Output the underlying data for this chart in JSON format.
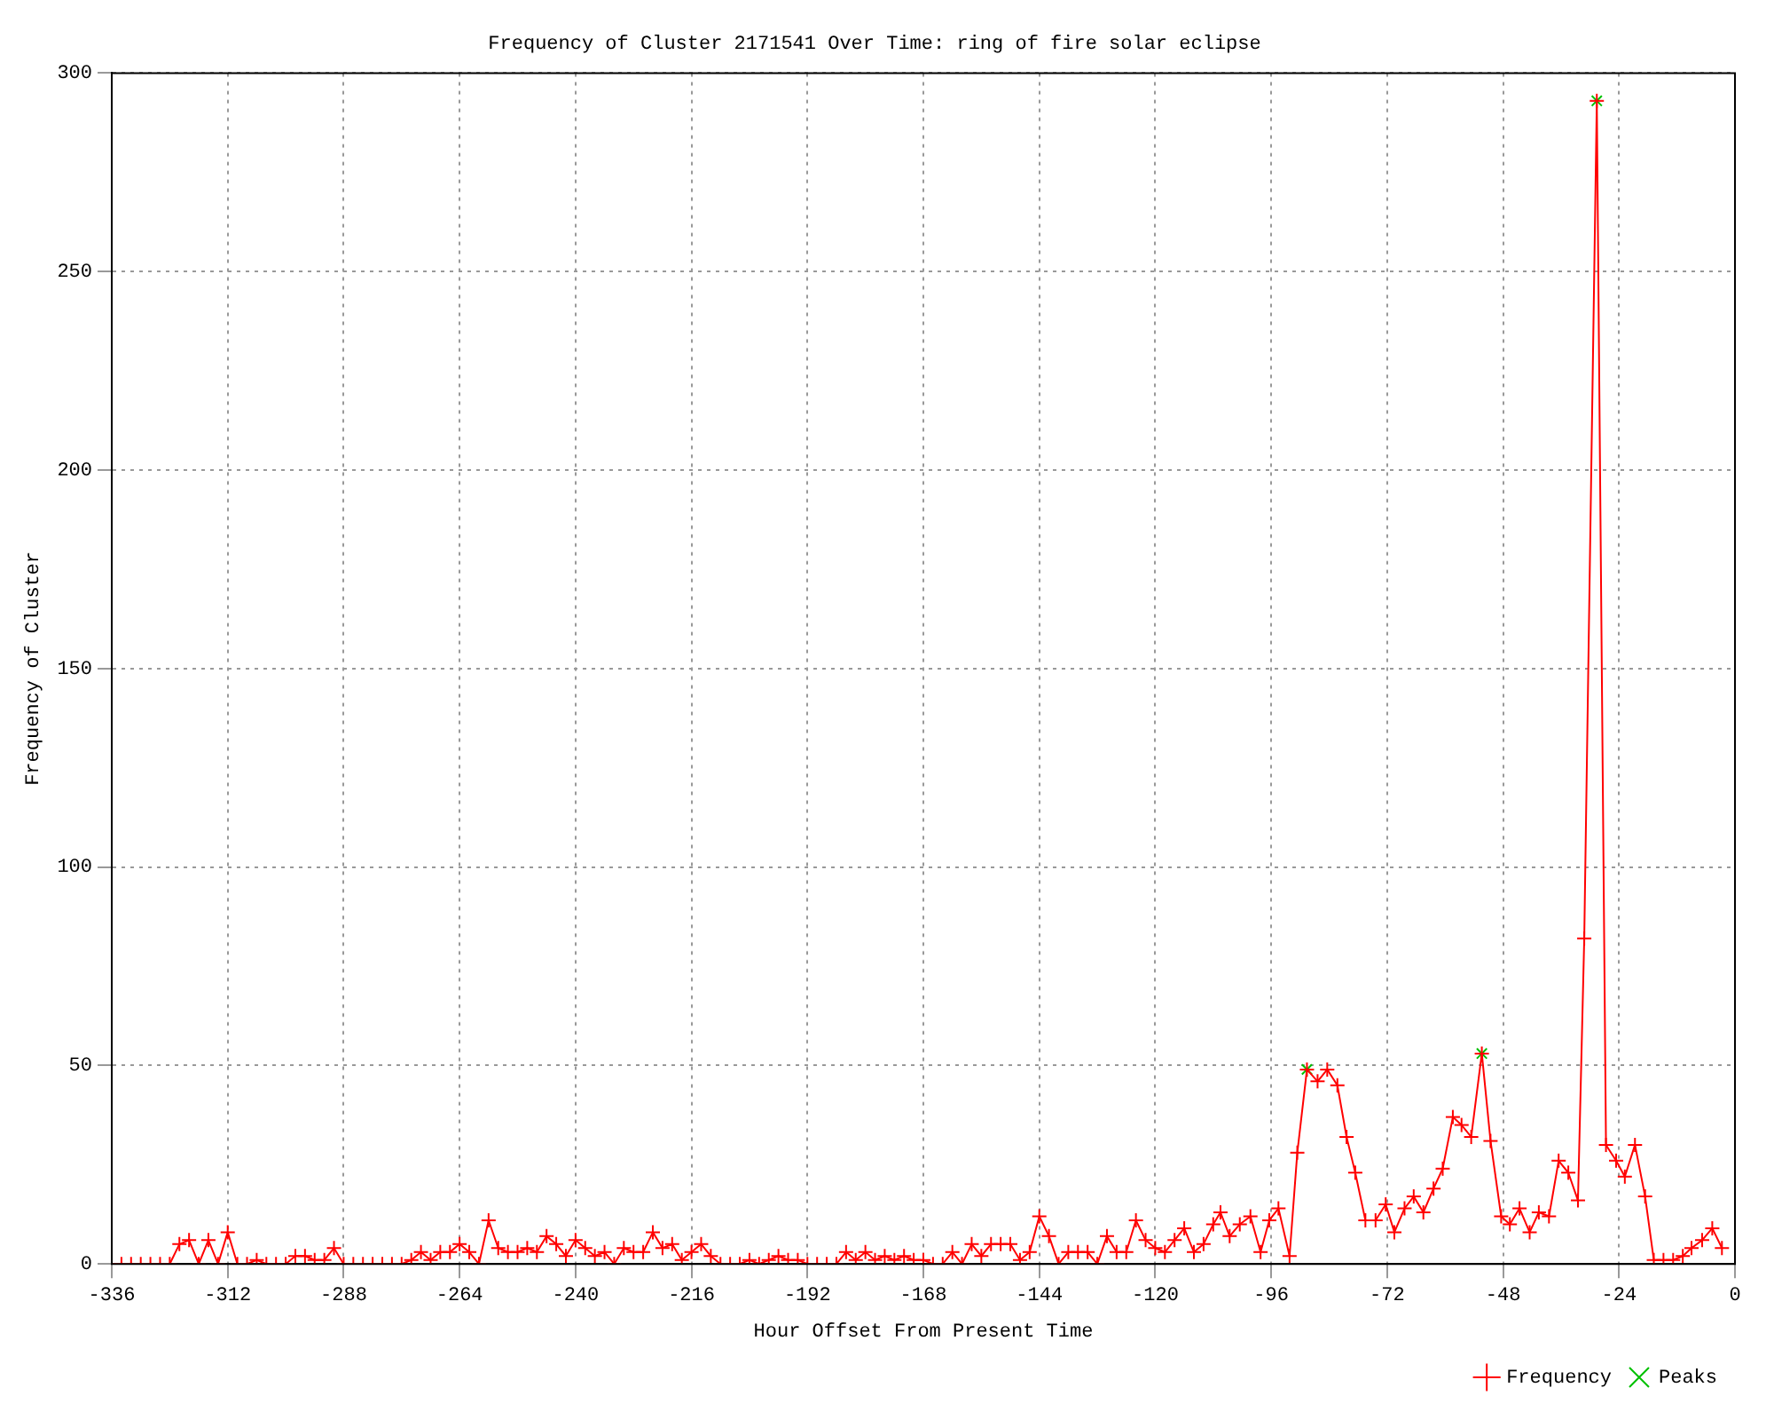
{
  "chart_data": {
    "type": "line",
    "title": "Frequency of Cluster 2171541 Over Time: ring of fire solar eclipse",
    "xlabel": "Hour Offset From Present Time",
    "ylabel": "Frequency of Cluster",
    "xlim": [
      -336,
      0
    ],
    "xticks": [
      -336,
      -312,
      -288,
      -264,
      -240,
      -216,
      -192,
      -168,
      -144,
      -120,
      -96,
      -72,
      -48,
      -24,
      0
    ],
    "ylim": [
      0,
      300
    ],
    "yticks": [
      0,
      50,
      100,
      150,
      200,
      250,
      300
    ],
    "grid": true,
    "legend": "bottom right",
    "line_style": "solid",
    "series": [
      {
        "name": "Frequency",
        "type": "line",
        "marker": "cross",
        "color": "#ff0000",
        "x": [
          -336,
          -334,
          -332,
          -330,
          -328,
          -326,
          -324,
          -322,
          -320,
          -318,
          -316,
          -314,
          -312,
          -310,
          -308,
          -306,
          -304,
          -302,
          -300,
          -298,
          -296,
          -294,
          -292,
          -290,
          -288,
          -286,
          -284,
          -282,
          -280,
          -278,
          -276,
          -274,
          -272,
          -270,
          -268,
          -266,
          -264,
          -262,
          -260,
          -258,
          -256,
          -254,
          -252,
          -250,
          -248,
          -246,
          -244,
          -242,
          -240,
          -238,
          -236,
          -234,
          -232,
          -230,
          -228,
          -226,
          -224,
          -222,
          -220,
          -218,
          -216,
          -214,
          -212,
          -210,
          -208,
          -206,
          -204,
          -202,
          -200,
          -198,
          -196,
          -194,
          -192,
          -190,
          -188,
          -186,
          -184,
          -182,
          -180,
          -178,
          -176,
          -174,
          -172,
          -170,
          -168,
          -166,
          -164,
          -162,
          -160,
          -158,
          -156,
          -154,
          -152,
          -150,
          -148,
          -146,
          -144,
          -142,
          -140,
          -138,
          -136,
          -134,
          -132,
          -130,
          -128,
          -126,
          -124,
          -122,
          -120,
          -118,
          -116,
          -114,
          -112,
          -110,
          -108,
          -106.5,
          -104.6,
          -102.5,
          -100.3,
          -98.2,
          -96.4,
          -94.5,
          -92.2,
          -90.6,
          -88.6,
          -86.4,
          -84.4,
          -82.3,
          -80.4,
          -78.6,
          -76.5,
          -74.4,
          -72.3,
          -70.5,
          -68.4,
          -66.5,
          -64.5,
          -62.4,
          -60.5,
          -58.4,
          -56.6,
          -54.6,
          -52.4,
          -50.6,
          -48.4,
          -46.6,
          -44.6,
          -42.5,
          -40.6,
          -38.5,
          -36.5,
          -34.5,
          -32.5,
          -31.2,
          -28.6,
          -26.7,
          -24.6,
          -22.8,
          -20.7,
          -18.6,
          -16.8,
          -14.8,
          -12.8,
          -10.8,
          -9,
          -6.8,
          -4.7,
          -2.7
        ],
        "values": [
          0,
          0,
          0,
          0,
          0,
          0,
          0,
          5,
          6,
          0,
          6,
          0,
          8,
          0,
          0,
          1,
          0,
          0,
          0,
          2,
          2,
          1,
          1,
          4,
          0,
          0,
          0,
          0,
          0,
          0,
          0,
          1,
          3,
          1,
          3,
          3,
          5,
          3,
          0,
          11,
          4,
          3,
          3,
          4,
          3,
          7,
          5,
          2,
          6,
          4,
          2,
          3,
          0,
          4,
          3,
          3,
          8,
          4,
          5,
          1,
          3,
          5,
          2,
          0,
          0,
          0,
          1,
          0,
          1,
          2,
          1,
          1,
          0,
          0,
          0,
          0,
          3,
          1,
          3,
          1,
          2,
          1,
          2,
          1,
          1,
          0,
          0,
          3,
          0,
          5,
          2,
          5,
          5,
          5,
          1,
          3,
          12,
          7,
          0,
          3,
          3,
          3,
          0,
          7,
          3,
          3,
          11,
          6,
          4,
          3,
          6,
          9,
          3,
          5,
          10,
          13,
          7,
          10,
          12,
          3,
          11,
          14,
          2,
          28,
          49,
          46,
          49,
          45,
          32,
          23,
          11,
          11,
          15,
          8,
          14,
          17,
          13,
          19,
          24,
          37,
          35,
          32,
          53,
          31,
          12,
          10,
          14,
          8,
          13,
          12,
          26,
          23,
          16,
          82,
          293,
          30,
          26,
          22,
          30,
          17,
          1,
          1,
          1,
          2,
          4,
          6,
          9,
          4
        ]
      },
      {
        "name": "Peaks",
        "type": "scatter",
        "marker": "cross",
        "color": "#00c000",
        "x": [
          -88.6,
          -52.4,
          -28.6
        ],
        "values": [
          49,
          53,
          293
        ]
      }
    ]
  }
}
